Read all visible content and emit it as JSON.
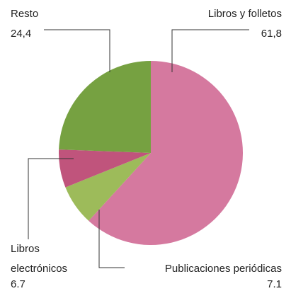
{
  "chart_data": {
    "type": "pie",
    "categories": [
      "Libros y folletos",
      "Publicaciones periódicas",
      "Libros electrónicos",
      "Resto"
    ],
    "values": [
      61.8,
      7.1,
      6.7,
      24.4
    ],
    "value_labels": [
      "61,8",
      "7.1",
      "6.7",
      "24,4"
    ],
    "colors": [
      "#d5799f",
      "#9dbb5a",
      "#c0547c",
      "#76a141"
    ]
  }
}
